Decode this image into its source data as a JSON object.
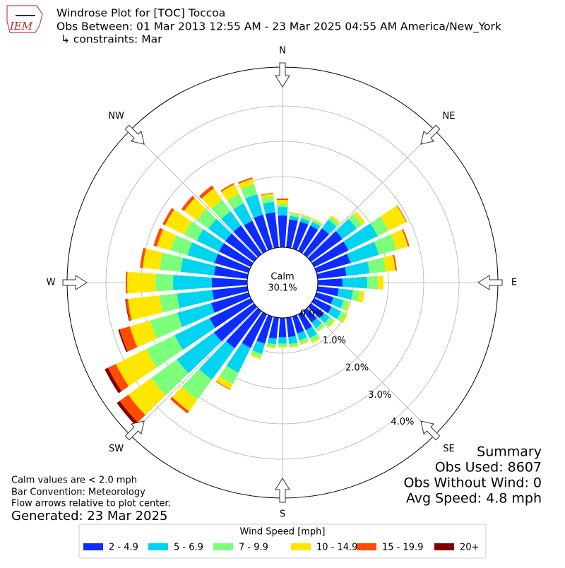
{
  "header": {
    "logo_text": "IEM",
    "title": "Windrose Plot for [TOC] Toccoa",
    "subtitle": "Obs Between: 01 Mar 2013 12:55 AM - 23 Mar 2025 04:55 AM America/New_York",
    "constraints": "↳ constraints: Mar"
  },
  "chart_data": {
    "type": "windrose",
    "x": [
      0,
      10,
      20,
      30,
      40,
      50,
      60,
      70,
      80,
      90,
      100,
      110,
      120,
      130,
      140,
      150,
      160,
      170,
      180,
      190,
      200,
      210,
      220,
      230,
      240,
      250,
      260,
      270,
      280,
      290,
      300,
      310,
      320,
      330,
      340,
      350
    ],
    "series": [
      {
        "name": "2 - 4.9",
        "color": "#0d2cff",
        "values": [
          0.9,
          0.8,
          0.8,
          0.8,
          0.9,
          1.1,
          1.08,
          1.0,
          0.82,
          0.7,
          0.6,
          0.5,
          0.55,
          0.45,
          0.4,
          0.5,
          0.5,
          0.55,
          0.55,
          0.6,
          0.8,
          1.06,
          1.3,
          1.4,
          1.3,
          1.1,
          1.0,
          1.0,
          0.95,
          1.0,
          1.0,
          1.0,
          1.0,
          0.95,
          1.0,
          1.0
        ]
      },
      {
        "name": "5 - 6.9",
        "color": "#00d4f0",
        "values": [
          0.24,
          0.1,
          0.1,
          0.12,
          0.3,
          0.5,
          0.92,
          0.84,
          0.66,
          0.7,
          0.4,
          0.3,
          0.3,
          0.2,
          0.2,
          0.25,
          0.2,
          0.2,
          0.18,
          0.16,
          0.3,
          0.78,
          1.1,
          1.3,
          1.1,
          1.0,
          1.0,
          1.1,
          0.95,
          0.8,
          0.7,
          0.6,
          0.5,
          0.55,
          0.6,
          0.3
        ]
      },
      {
        "name": "7 - 9.9",
        "color": "#7cff7a",
        "values": [
          0.08,
          0.06,
          0.08,
          0.06,
          0.1,
          0.2,
          0.34,
          0.52,
          0.46,
          0.3,
          0.2,
          0.15,
          0.15,
          0.15,
          0.1,
          0.12,
          0.1,
          0.08,
          0.08,
          0.08,
          0.1,
          0.36,
          0.7,
          0.9,
          0.9,
          0.8,
          0.5,
          0.5,
          0.6,
          0.5,
          0.4,
          0.4,
          0.4,
          0.3,
          0.3,
          0.15
        ]
      },
      {
        "name": "10 - 14.9",
        "color": "#ffe600",
        "values": [
          0.12,
          0.04,
          0.02,
          0.04,
          0.06,
          0.1,
          0.56,
          0.34,
          0.28,
          0.16,
          0.14,
          0.05,
          0.06,
          0.04,
          0.02,
          0.05,
          0.04,
          0.03,
          0.03,
          0.04,
          0.06,
          0.16,
          0.4,
          0.8,
          0.95,
          0.6,
          0.9,
          0.8,
          0.48,
          0.4,
          0.6,
          0.45,
          0.4,
          0.3,
          0.16,
          0.09
        ]
      },
      {
        "name": "15 - 19.9",
        "color": "#ff4a00",
        "values": [
          0.04,
          0,
          0,
          0,
          0,
          0,
          0.02,
          0.04,
          0.04,
          0,
          0,
          0,
          0,
          0,
          0,
          0,
          0,
          0,
          0,
          0,
          0,
          0.02,
          0.08,
          0.3,
          0.25,
          0.3,
          0.06,
          0.04,
          0.08,
          0.1,
          0.08,
          0.09,
          0.1,
          0.04,
          0.04,
          0.02
        ]
      },
      {
        "name": "20+",
        "color": "#800000",
        "values": [
          0,
          0,
          0,
          0,
          0,
          0,
          0,
          0,
          0,
          0,
          0,
          0,
          0,
          0,
          0,
          0,
          0,
          0,
          0,
          0,
          0,
          0,
          0,
          0.1,
          0.1,
          0.04,
          0.02,
          0,
          0,
          0,
          0,
          0,
          0,
          0,
          0,
          0
        ]
      }
    ],
    "ylim": [
      0,
      5.1
    ],
    "yticks": [
      {
        "value": 0,
        "label": "0.0%"
      },
      {
        "value": 1,
        "label": "1.0%"
      },
      {
        "value": 2,
        "label": "2.0%"
      },
      {
        "value": 3,
        "label": "3.0%"
      },
      {
        "value": 4,
        "label": "4.0%"
      }
    ],
    "grid": true,
    "compass": [
      {
        "value": 0,
        "label": "N"
      },
      {
        "value": 45,
        "label": "NE"
      },
      {
        "value": 90,
        "label": "E"
      },
      {
        "value": 135,
        "label": "SE"
      },
      {
        "value": 180,
        "label": "S"
      },
      {
        "value": 225,
        "label": "SW"
      },
      {
        "value": 270,
        "label": "W"
      },
      {
        "value": 315,
        "label": "NW"
      }
    ],
    "calm": {
      "label": "Calm",
      "value": 30.1,
      "value_label": "30.1%"
    },
    "legend_title": "Wind Speed [mph]",
    "legend": "lower center"
  },
  "summary": {
    "title": "Summary",
    "lines": [
      "Obs Used: 8607",
      "Obs Without Wind: 0",
      "Avg Speed: 4.8 mph"
    ]
  },
  "notes": [
    "Calm values are < 2.0 mph",
    "Bar Convention: Meteorology",
    "Flow arrows relative to plot center."
  ],
  "generated": "Generated: 23 Mar 2025"
}
